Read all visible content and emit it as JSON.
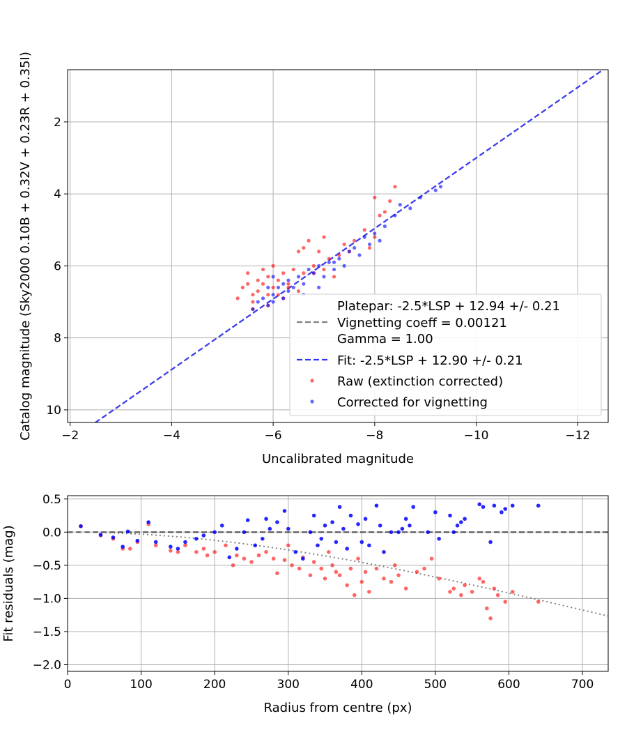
{
  "chart_data": [
    {
      "type": "scatter",
      "title": "",
      "xlabel": "Uncalibrated magnitude",
      "ylabel": "Catalog magnitude (Sky2000 0.10B + 0.32V + 0.23R + 0.35I)",
      "xlim": [
        -1.95,
        -12.6
      ],
      "ylim": [
        10.35,
        0.55
      ],
      "x_inverted": true,
      "y_inverted": true,
      "grid": true,
      "xticks": [
        -2,
        -4,
        -6,
        -8,
        -10,
        -12
      ],
      "xtick_labels": [
        "−2",
        "−4",
        "−6",
        "−8",
        "−10",
        "−12"
      ],
      "yticks": [
        2,
        4,
        6,
        8,
        10
      ],
      "ytick_labels": [
        "2",
        "4",
        "6",
        "8",
        "10"
      ],
      "legend_position": "lower-right",
      "legend": [
        {
          "label": "Platepar: -2.5*LSP + 12.94 +/- 0.21\nVignetting coeff = 0.00121\nGamma = 1.00",
          "style": "dashed",
          "color": "#808080"
        },
        {
          "label": "Fit: -2.5*LSP + 12.90 +/- 0.21",
          "style": "dashed",
          "color": "#3333ff"
        },
        {
          "label": "Raw (extinction corrected)",
          "style": "marker",
          "color": "#ff0000"
        },
        {
          "label": "Corrected for vignetting",
          "style": "marker",
          "color": "#0000ff"
        }
      ],
      "lines": [
        {
          "name": "Platepar",
          "slope": 1,
          "intercept": 12.94,
          "color": "#808080"
        },
        {
          "name": "Fit",
          "slope": 1,
          "intercept": 12.9,
          "color": "#3333ff"
        }
      ],
      "series": [
        {
          "name": "Raw (extinction corrected)",
          "color": "#ff0000",
          "points": [
            [
              -5.3,
              6.9
            ],
            [
              -5.4,
              6.6
            ],
            [
              -5.5,
              6.2
            ],
            [
              -5.5,
              6.5
            ],
            [
              -5.6,
              6.8
            ],
            [
              -5.6,
              7.0
            ],
            [
              -5.7,
              6.4
            ],
            [
              -5.7,
              6.7
            ],
            [
              -5.8,
              6.1
            ],
            [
              -5.8,
              6.5
            ],
            [
              -5.9,
              6.8
            ],
            [
              -5.9,
              6.3
            ],
            [
              -6.0,
              6.0
            ],
            [
              -6.0,
              6.6
            ],
            [
              -6.1,
              6.4
            ],
            [
              -6.2,
              6.9
            ],
            [
              -6.2,
              6.2
            ],
            [
              -6.3,
              6.5
            ],
            [
              -6.4,
              6.1
            ],
            [
              -6.5,
              5.6
            ],
            [
              -6.5,
              6.7
            ],
            [
              -6.6,
              5.5
            ],
            [
              -6.6,
              6.2
            ],
            [
              -6.7,
              5.3
            ],
            [
              -6.8,
              6.0
            ],
            [
              -6.9,
              5.6
            ],
            [
              -7.0,
              5.2
            ],
            [
              -7.0,
              6.1
            ],
            [
              -7.1,
              5.8
            ],
            [
              -7.2,
              6.3
            ],
            [
              -7.3,
              5.7
            ],
            [
              -7.4,
              5.4
            ],
            [
              -7.6,
              5.3
            ],
            [
              -7.8,
              5.0
            ],
            [
              -7.9,
              5.5
            ],
            [
              -8.0,
              4.1
            ],
            [
              -8.1,
              4.6
            ],
            [
              -8.2,
              4.5
            ],
            [
              -8.3,
              4.2
            ],
            [
              -8.4,
              3.8
            ],
            [
              -5.6,
              7.2
            ],
            [
              -5.9,
              7.1
            ],
            [
              -6.1,
              6.8
            ],
            [
              -6.3,
              6.6
            ],
            [
              -6.8,
              6.2
            ],
            [
              -7.5,
              5.6
            ],
            [
              -8.0,
              5.2
            ]
          ]
        },
        {
          "name": "Corrected for vignetting",
          "color": "#0000ff",
          "points": [
            [
              -5.6,
              7.2
            ],
            [
              -5.7,
              7.0
            ],
            [
              -5.8,
              6.9
            ],
            [
              -5.9,
              7.1
            ],
            [
              -6.0,
              6.8
            ],
            [
              -6.0,
              7.0
            ],
            [
              -6.1,
              6.6
            ],
            [
              -6.2,
              6.5
            ],
            [
              -6.2,
              6.9
            ],
            [
              -6.3,
              6.4
            ],
            [
              -6.4,
              6.6
            ],
            [
              -6.5,
              6.3
            ],
            [
              -6.6,
              6.5
            ],
            [
              -6.7,
              6.1
            ],
            [
              -6.8,
              6.2
            ],
            [
              -6.9,
              6.0
            ],
            [
              -7.0,
              6.3
            ],
            [
              -7.1,
              5.9
            ],
            [
              -7.2,
              6.1
            ],
            [
              -7.3,
              5.8
            ],
            [
              -7.4,
              6.0
            ],
            [
              -7.5,
              5.6
            ],
            [
              -7.6,
              5.5
            ],
            [
              -7.7,
              5.7
            ],
            [
              -7.8,
              5.2
            ],
            [
              -7.9,
              5.4
            ],
            [
              -8.0,
              5.1
            ],
            [
              -8.1,
              5.3
            ],
            [
              -8.2,
              4.9
            ],
            [
              -8.4,
              4.6
            ],
            [
              -8.5,
              4.3
            ],
            [
              -8.7,
              4.4
            ],
            [
              -8.9,
              4.1
            ],
            [
              -9.2,
              3.9
            ],
            [
              -9.3,
              3.8
            ],
            [
              -6.0,
              6.3
            ],
            [
              -6.3,
              6.7
            ],
            [
              -6.6,
              6.8
            ],
            [
              -5.9,
              6.6
            ],
            [
              -6.9,
              6.6
            ],
            [
              -7.2,
              5.9
            ]
          ]
        }
      ]
    },
    {
      "type": "scatter",
      "title": "",
      "xlabel": "Radius from centre (px)",
      "ylabel": "Fit residuals (mag)",
      "xlim": [
        0,
        735
      ],
      "ylim": [
        -2.1,
        0.55
      ],
      "grid": true,
      "xticks": [
        0,
        100,
        200,
        300,
        400,
        500,
        600,
        700
      ],
      "xtick_labels": [
        "0",
        "100",
        "200",
        "300",
        "400",
        "500",
        "600",
        "700"
      ],
      "yticks": [
        0.5,
        0.0,
        -0.5,
        -1.0,
        -1.5,
        -2.0
      ],
      "ytick_labels": [
        "0.5",
        "0.0",
        "−0.5",
        "−1.0",
        "−1.5",
        "−2.0"
      ],
      "reference_line": {
        "y": 0.0,
        "color": "#505050",
        "style": "dashed"
      },
      "vignetting_curve": {
        "coeff": 0.00121,
        "color": "#808080",
        "style": "dotted"
      },
      "series": [
        {
          "name": "Raw (extinction corrected)",
          "color": "#ff0000",
          "points": [
            [
              18,
              0.09
            ],
            [
              45,
              -0.05
            ],
            [
              62,
              -0.1
            ],
            [
              75,
              -0.25
            ],
            [
              85,
              -0.25
            ],
            [
              95,
              -0.15
            ],
            [
              110,
              0.12
            ],
            [
              120,
              -0.2
            ],
            [
              140,
              -0.28
            ],
            [
              150,
              -0.3
            ],
            [
              160,
              -0.2
            ],
            [
              175,
              -0.3
            ],
            [
              185,
              -0.25
            ],
            [
              190,
              -0.35
            ],
            [
              200,
              -0.3
            ],
            [
              215,
              -0.2
            ],
            [
              225,
              -0.5
            ],
            [
              230,
              -0.35
            ],
            [
              240,
              -0.4
            ],
            [
              250,
              -0.45
            ],
            [
              260,
              -0.35
            ],
            [
              270,
              -0.3
            ],
            [
              280,
              -0.4
            ],
            [
              285,
              -0.62
            ],
            [
              295,
              -0.42
            ],
            [
              305,
              -0.5
            ],
            [
              315,
              -0.55
            ],
            [
              320,
              -0.38
            ],
            [
              330,
              -0.65
            ],
            [
              335,
              -0.45
            ],
            [
              345,
              -0.55
            ],
            [
              350,
              -0.7
            ],
            [
              360,
              -0.5
            ],
            [
              365,
              -0.6
            ],
            [
              370,
              -0.65
            ],
            [
              380,
              -0.8
            ],
            [
              385,
              -0.55
            ],
            [
              390,
              -0.95
            ],
            [
              400,
              -0.75
            ],
            [
              405,
              -0.6
            ],
            [
              410,
              -0.9
            ],
            [
              420,
              -0.55
            ],
            [
              430,
              -0.7
            ],
            [
              440,
              -0.75
            ],
            [
              450,
              -0.65
            ],
            [
              460,
              -0.85
            ],
            [
              475,
              -0.6
            ],
            [
              485,
              -0.55
            ],
            [
              495,
              -0.4
            ],
            [
              505,
              -0.7
            ],
            [
              520,
              -0.9
            ],
            [
              525,
              -0.85
            ],
            [
              535,
              -0.95
            ],
            [
              540,
              -0.8
            ],
            [
              550,
              -0.9
            ],
            [
              560,
              -0.7
            ],
            [
              565,
              -0.75
            ],
            [
              570,
              -1.15
            ],
            [
              575,
              -1.3
            ],
            [
              580,
              -0.85
            ],
            [
              585,
              -0.95
            ],
            [
              595,
              -1.05
            ],
            [
              605,
              -0.9
            ],
            [
              640,
              -1.05
            ],
            [
              300,
              -0.2
            ],
            [
              355,
              -0.3
            ],
            [
              395,
              -0.4
            ],
            [
              445,
              -0.5
            ]
          ]
        },
        {
          "name": "Corrected for vignetting",
          "color": "#0000ff",
          "points": [
            [
              18,
              0.09
            ],
            [
              45,
              -0.04
            ],
            [
              62,
              -0.08
            ],
            [
              75,
              -0.22
            ],
            [
              82,
              0.01
            ],
            [
              95,
              -0.13
            ],
            [
              110,
              0.15
            ],
            [
              120,
              -0.15
            ],
            [
              140,
              -0.22
            ],
            [
              150,
              -0.25
            ],
            [
              160,
              -0.15
            ],
            [
              175,
              -0.1
            ],
            [
              185,
              -0.05
            ],
            [
              200,
              0.0
            ],
            [
              210,
              0.1
            ],
            [
              220,
              -0.38
            ],
            [
              230,
              -0.25
            ],
            [
              240,
              0.0
            ],
            [
              245,
              0.18
            ],
            [
              255,
              -0.2
            ],
            [
              265,
              -0.1
            ],
            [
              275,
              0.05
            ],
            [
              285,
              0.15
            ],
            [
              295,
              0.32
            ],
            [
              300,
              0.05
            ],
            [
              310,
              -0.3
            ],
            [
              320,
              -0.4
            ],
            [
              330,
              0.0
            ],
            [
              335,
              0.25
            ],
            [
              340,
              -0.2
            ],
            [
              350,
              0.1
            ],
            [
              360,
              0.15
            ],
            [
              365,
              -0.15
            ],
            [
              370,
              0.38
            ],
            [
              375,
              0.05
            ],
            [
              380,
              -0.25
            ],
            [
              385,
              0.25
            ],
            [
              395,
              0.12
            ],
            [
              400,
              -0.15
            ],
            [
              405,
              0.2
            ],
            [
              410,
              -0.2
            ],
            [
              420,
              0.4
            ],
            [
              425,
              0.1
            ],
            [
              430,
              -0.3
            ],
            [
              440,
              0.0
            ],
            [
              450,
              0.0
            ],
            [
              460,
              0.2
            ],
            [
              465,
              0.1
            ],
            [
              470,
              0.38
            ],
            [
              490,
              0.0
            ],
            [
              500,
              0.3
            ],
            [
              505,
              -0.1
            ],
            [
              520,
              0.25
            ],
            [
              525,
              0.0
            ],
            [
              530,
              0.1
            ],
            [
              535,
              0.15
            ],
            [
              540,
              0.2
            ],
            [
              560,
              0.42
            ],
            [
              565,
              0.38
            ],
            [
              575,
              -0.15
            ],
            [
              580,
              0.4
            ],
            [
              590,
              0.3
            ],
            [
              595,
              0.35
            ],
            [
              605,
              0.4
            ],
            [
              640,
              0.4
            ],
            [
              270,
              0.2
            ],
            [
              345,
              -0.1
            ],
            [
              455,
              0.05
            ]
          ]
        }
      ]
    }
  ]
}
